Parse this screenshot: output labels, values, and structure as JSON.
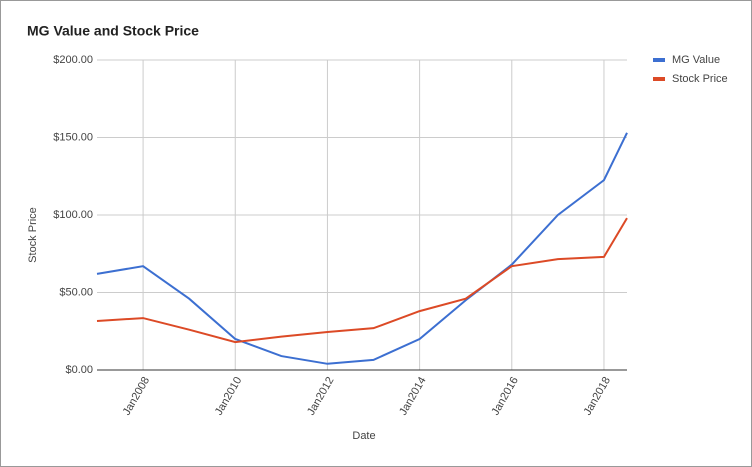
{
  "chart_data": {
    "type": "line",
    "title": "MG Value and Stock Price",
    "x_label": "Date",
    "y_label": "Stock Price",
    "x": [
      2007,
      2008,
      2009,
      2010,
      2011,
      2012,
      2013,
      2014,
      2015,
      2016,
      2017,
      2018,
      2018.5
    ],
    "series": [
      {
        "name": "MG Value",
        "color": "#3c6fd1",
        "values": [
          62,
          67,
          46,
          20,
          9,
          4,
          6.5,
          20,
          45,
          68,
          100,
          122.5,
          153
        ]
      },
      {
        "name": "Stock Price",
        "color": "#dc4a26",
        "values": [
          31.6,
          33.5,
          26,
          18,
          21.5,
          24.5,
          27,
          38,
          46,
          67,
          71.5,
          73,
          98
        ]
      }
    ],
    "xlim": [
      2007,
      2018.5
    ],
    "xticks": [
      {
        "value": 2008,
        "label": "Jan2008"
      },
      {
        "value": 2010,
        "label": "Jan2010"
      },
      {
        "value": 2012,
        "label": "Jan2012"
      },
      {
        "value": 2014,
        "label": "Jan2014"
      },
      {
        "value": 2016,
        "label": "Jan2016"
      },
      {
        "value": 2018,
        "label": "Jan2018"
      }
    ],
    "ylim": [
      0,
      200
    ],
    "yticks": [
      {
        "value": 0,
        "label": "$0.00"
      },
      {
        "value": 50,
        "label": "$50.00"
      },
      {
        "value": 100,
        "label": "$100.00"
      },
      {
        "value": 150,
        "label": "$150.00"
      },
      {
        "value": 200,
        "label": "$200.00"
      }
    ],
    "grid": true,
    "legend": "right"
  }
}
